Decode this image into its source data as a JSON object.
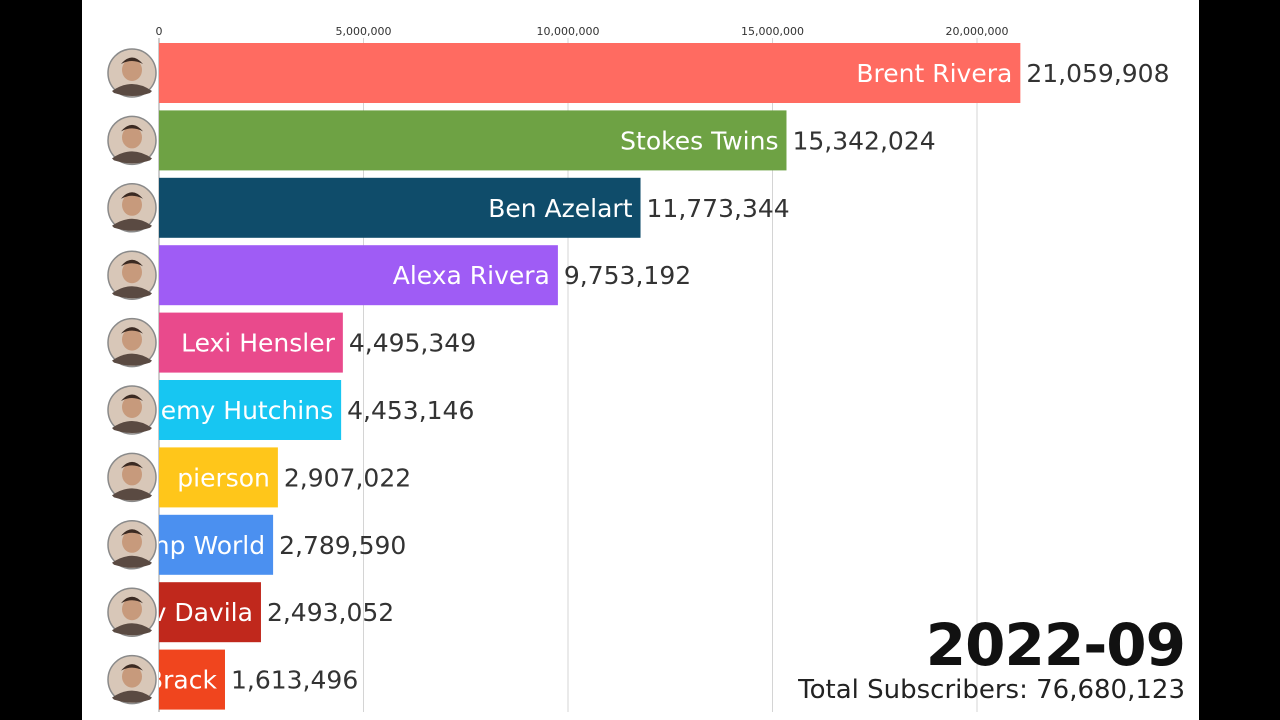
{
  "chart_data": {
    "type": "bar",
    "orientation": "horizontal",
    "xlim": [
      0,
      22500000
    ],
    "x_ticks": [
      0,
      5000000,
      10000000,
      15000000,
      20000000
    ],
    "x_tick_labels": [
      "0",
      "5,000,000",
      "10,000,000",
      "15,000,000",
      "20,000,000"
    ],
    "grid": true,
    "bars": [
      {
        "label": "Brent Rivera",
        "value": 21059908,
        "value_label": "21,059,908",
        "color": "#ff6b61"
      },
      {
        "label": "Stokes Twins",
        "value": 15342024,
        "value_label": "15,342,024",
        "color": "#6ea244"
      },
      {
        "label": "Ben Azelart",
        "value": 11773344,
        "value_label": "11,773,344",
        "color": "#0f4c6a"
      },
      {
        "label": "Alexa Rivera",
        "value": 9753192,
        "value_label": "9,753,192",
        "color": "#9f5cf5"
      },
      {
        "label": "Lexi Hensler",
        "value": 4495349,
        "value_label": "4,495,349",
        "color": "#e94a8c"
      },
      {
        "label": "emy Hutchins",
        "value": 4453146,
        "value_label": "4,453,146",
        "color": "#17c6f2"
      },
      {
        "label": "pierson",
        "value": 2907022,
        "value_label": "2,907,022",
        "color": "#ffc61a"
      },
      {
        "label": "np World",
        "value": 2789590,
        "value_label": "2,789,590",
        "color": "#4b90f0"
      },
      {
        "label": "v Davila",
        "value": 2493052,
        "value_label": "2,493,052",
        "color": "#c0281c"
      },
      {
        "label": "Brack",
        "value": 1613496,
        "value_label": "1,613,496",
        "color": "#f0451e"
      }
    ]
  },
  "period": "2022-09",
  "total": "Total Subscribers: 76,680,123"
}
